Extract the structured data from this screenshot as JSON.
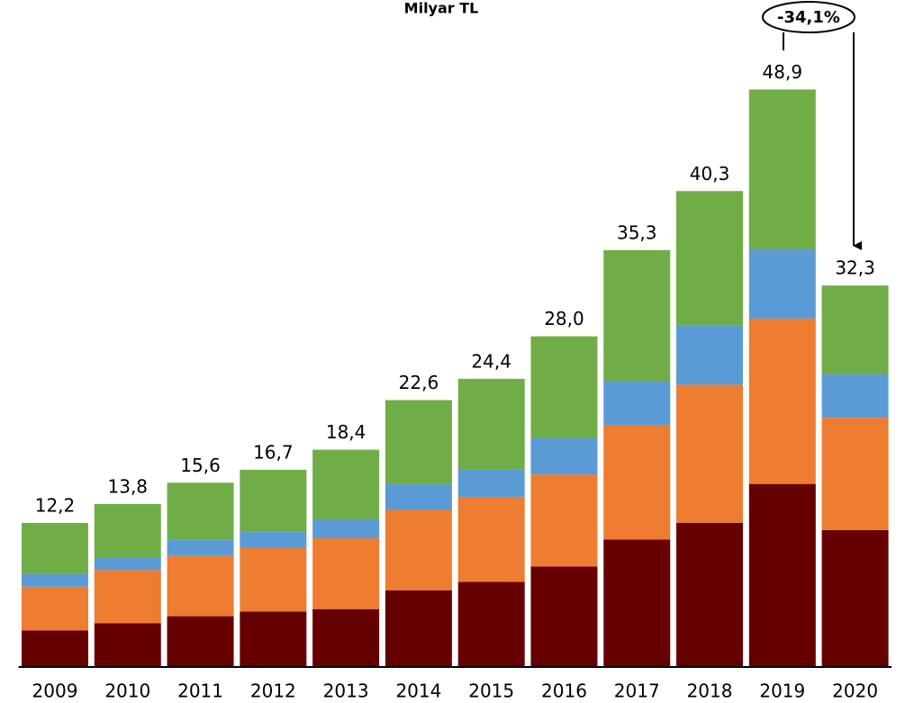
{
  "chart_data": {
    "type": "stacked_bar",
    "title": "Milyar TL",
    "categories": [
      "2009",
      "2010",
      "2011",
      "2012",
      "2013",
      "2014",
      "2015",
      "2016",
      "2017",
      "2018",
      "2019",
      "2020"
    ],
    "series": [
      {
        "color": "#660000",
        "values": [
          3.1,
          3.7,
          4.3,
          4.7,
          4.9,
          6.5,
          7.2,
          8.5,
          10.8,
          12.2,
          15.5,
          11.6
        ]
      },
      {
        "color": "#ed7d31",
        "values": [
          3.7,
          4.5,
          5.1,
          5.4,
          6.0,
          6.8,
          7.2,
          7.8,
          9.7,
          11.7,
          14.0,
          9.5
        ]
      },
      {
        "color": "#5b9bd5",
        "values": [
          1.1,
          1.1,
          1.4,
          1.4,
          1.6,
          2.2,
          2.3,
          3.1,
          3.7,
          5.0,
          5.9,
          3.7
        ]
      },
      {
        "color": "#70ad47",
        "values": [
          4.3,
          4.5,
          4.8,
          5.2,
          5.9,
          7.1,
          7.7,
          8.6,
          11.1,
          11.4,
          13.5,
          7.5
        ]
      }
    ],
    "totals": [
      12.2,
      13.8,
      15.6,
      16.7,
      18.4,
      22.6,
      24.4,
      28.0,
      35.3,
      40.3,
      48.9,
      32.3
    ],
    "value_labels": [
      "12,2",
      "13,8",
      "15,6",
      "16,7",
      "18,4",
      "22,6",
      "24,4",
      "28,0",
      "35,3",
      "40,3",
      "48,9",
      "32,3"
    ],
    "ylim": [
      0,
      50
    ],
    "annotation": "-34,1%"
  }
}
